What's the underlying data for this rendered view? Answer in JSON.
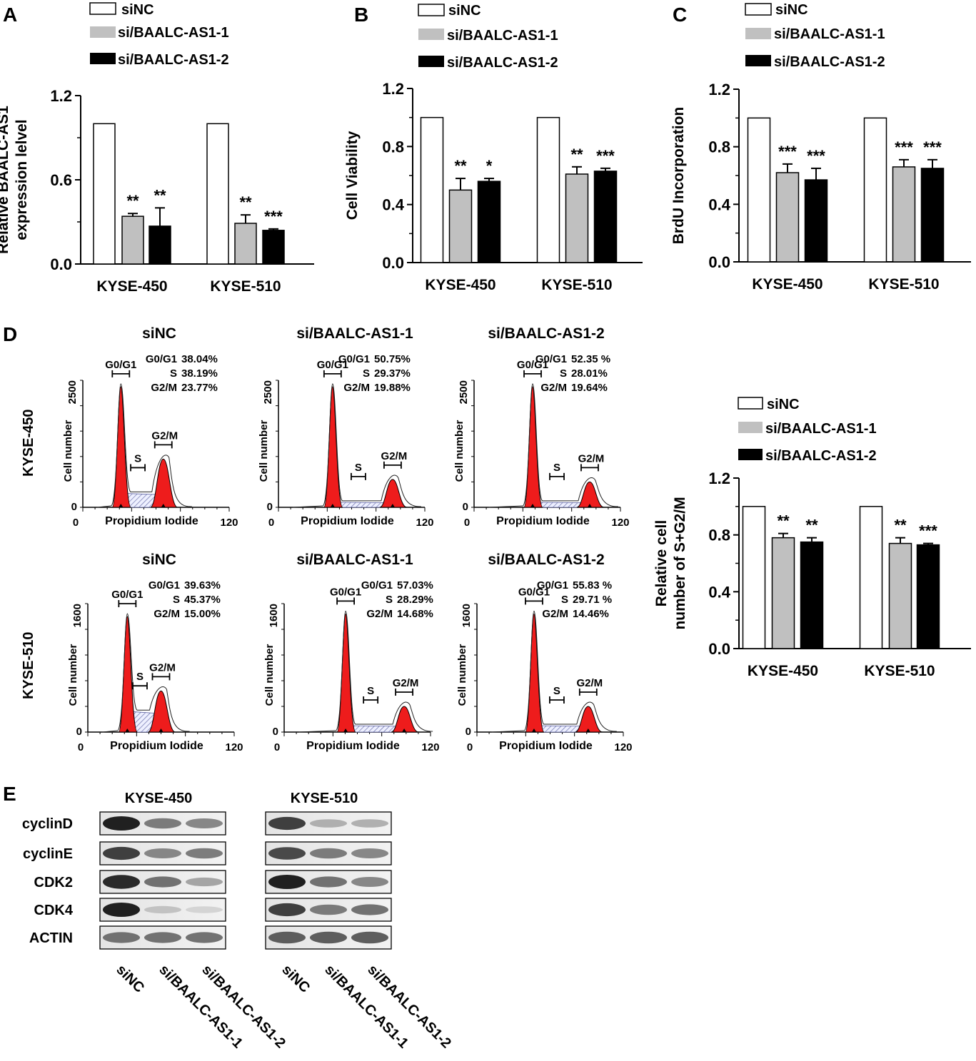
{
  "panels": {
    "A": "A",
    "B": "B",
    "C": "C",
    "D": "D",
    "E": "E"
  },
  "legend": [
    "siNC",
    "si/BAALC-AS1-1",
    "si/BAALC-AS1-2"
  ],
  "colors": {
    "siNC": "#ffffff",
    "si1": "#c0c0c0",
    "si2": "#000000",
    "peak": "#ee1c1c",
    "hatch": "#5a5fa0"
  },
  "chart_data": [
    {
      "id": "A",
      "type": "bar",
      "ylabel_lines": [
        "Relative BAALC-AS1",
        "expression lelvel"
      ],
      "ylim": [
        0,
        1.2
      ],
      "yticks": [
        "0.0",
        "0.6",
        "1.2"
      ],
      "categories": [
        "KYSE-450",
        "KYSE-510"
      ],
      "series": [
        {
          "name": "siNC",
          "values": [
            1.0,
            1.0
          ],
          "errors": [
            0,
            0
          ]
        },
        {
          "name": "si/BAALC-AS1-1",
          "values": [
            0.34,
            0.29
          ],
          "errors": [
            0.02,
            0.06
          ]
        },
        {
          "name": "si/BAALC-AS1-2",
          "values": [
            0.27,
            0.24
          ],
          "errors": [
            0.13,
            0.01
          ]
        }
      ],
      "significance": [
        [
          "",
          "**",
          "**"
        ],
        [
          "",
          "**",
          "***"
        ]
      ]
    },
    {
      "id": "B",
      "type": "bar",
      "ylabel_lines": [
        "Cell Viability"
      ],
      "ylim": [
        0,
        1.2
      ],
      "yticks": [
        "0.0",
        "0.4",
        "0.8",
        "1.2"
      ],
      "categories": [
        "KYSE-450",
        "KYSE-510"
      ],
      "series": [
        {
          "name": "siNC",
          "values": [
            1.0,
            1.0
          ],
          "errors": [
            0,
            0
          ]
        },
        {
          "name": "si/BAALC-AS1-1",
          "values": [
            0.5,
            0.61
          ],
          "errors": [
            0.08,
            0.05
          ]
        },
        {
          "name": "si/BAALC-AS1-2",
          "values": [
            0.56,
            0.63
          ],
          "errors": [
            0.02,
            0.02
          ]
        }
      ],
      "significance": [
        [
          "",
          "**",
          "*"
        ],
        [
          "",
          "**",
          "***"
        ]
      ]
    },
    {
      "id": "C",
      "type": "bar",
      "ylabel_lines": [
        "BrdU Incorporation"
      ],
      "ylim": [
        0,
        1.2
      ],
      "yticks": [
        "0.0",
        "0.4",
        "0.8",
        "1.2"
      ],
      "categories": [
        "KYSE-450",
        "KYSE-510"
      ],
      "series": [
        {
          "name": "siNC",
          "values": [
            1.0,
            1.0
          ],
          "errors": [
            0,
            0
          ]
        },
        {
          "name": "si/BAALC-AS1-1",
          "values": [
            0.62,
            0.66
          ],
          "errors": [
            0.06,
            0.05
          ]
        },
        {
          "name": "si/BAALC-AS1-2",
          "values": [
            0.57,
            0.65
          ],
          "errors": [
            0.08,
            0.06
          ]
        }
      ],
      "significance": [
        [
          "",
          "***",
          "***"
        ],
        [
          "",
          "***",
          "***"
        ]
      ]
    },
    {
      "id": "D-bar",
      "type": "bar",
      "ylabel_lines": [
        "Relative cell",
        "number of S+G2/M"
      ],
      "ylim": [
        0,
        1.2
      ],
      "yticks": [
        "0.0",
        "0.4",
        "0.8",
        "1.2"
      ],
      "categories": [
        "KYSE-450",
        "KYSE-510"
      ],
      "series": [
        {
          "name": "siNC",
          "values": [
            1.0,
            1.0
          ],
          "errors": [
            0,
            0
          ]
        },
        {
          "name": "si/BAALC-AS1-1",
          "values": [
            0.78,
            0.74
          ],
          "errors": [
            0.03,
            0.04
          ]
        },
        {
          "name": "si/BAALC-AS1-2",
          "values": [
            0.75,
            0.73
          ],
          "errors": [
            0.03,
            0.01
          ]
        }
      ],
      "significance": [
        [
          "",
          "**",
          "**"
        ],
        [
          "",
          "**",
          "***"
        ]
      ]
    }
  ],
  "flow": {
    "rows": [
      "KYSE-450",
      "KYSE-510"
    ],
    "xlabel": "Propidium Iodide",
    "ylabel": "Cell number",
    "xticks": [
      "0",
      "120"
    ],
    "ymax": [
      "2500",
      "1600"
    ],
    "gate_labels": {
      "g0g1": "G0/G1",
      "s": "S",
      "g2m": "G2/M"
    },
    "stat_labels": [
      "G0/G1",
      "S",
      "G2/M"
    ],
    "plots": [
      {
        "title": "siNC",
        "values": [
          "38.04%",
          "38.19%",
          "23.77%"
        ],
        "g0": 0.95,
        "s": 0.22,
        "g2": 0.38
      },
      {
        "title": "si/BAALC-AS1-1",
        "values": [
          "50.75%",
          "29.37%",
          "19.88%"
        ],
        "g0": 0.95,
        "s": 0.08,
        "g2": 0.22
      },
      {
        "title": "si/BAALC-AS1-2",
        "values": [
          "52.35 %",
          "28.01%",
          "19.64%"
        ],
        "g0": 0.95,
        "s": 0.08,
        "g2": 0.2
      },
      {
        "title": "siNC",
        "values": [
          "39.63%",
          "45.37%",
          "15.00%"
        ],
        "g0": 0.9,
        "s": 0.32,
        "g2": 0.32
      },
      {
        "title": "si/BAALC-AS1-1",
        "values": [
          "57.03%",
          "28.29%",
          "14.68%"
        ],
        "g0": 0.92,
        "s": 0.1,
        "g2": 0.2
      },
      {
        "title": "si/BAALC-AS1-2",
        "values": [
          "55.83 %",
          "29.71 %",
          "14.46%"
        ],
        "g0": 0.92,
        "s": 0.1,
        "g2": 0.2
      }
    ]
  },
  "western": {
    "groups": [
      "KYSE-450",
      "KYSE-510"
    ],
    "proteins": [
      "cyclinD",
      "cyclinE",
      "CDK2",
      "CDK4",
      "ACTIN"
    ],
    "lanes": [
      "siNC",
      "si/BAALC-AS1-1",
      "si/BAALC-AS1-2"
    ],
    "intensity": [
      [
        [
          1.0,
          0.55,
          0.5
        ],
        [
          0.85,
          0.3,
          0.3
        ]
      ],
      [
        [
          0.85,
          0.5,
          0.55
        ],
        [
          0.8,
          0.55,
          0.5
        ]
      ],
      [
        [
          0.95,
          0.6,
          0.35
        ],
        [
          1.0,
          0.6,
          0.5
        ]
      ],
      [
        [
          1.0,
          0.2,
          0.12
        ],
        [
          0.85,
          0.55,
          0.6
        ]
      ],
      [
        [
          0.6,
          0.6,
          0.6
        ],
        [
          0.7,
          0.7,
          0.7
        ]
      ]
    ]
  }
}
